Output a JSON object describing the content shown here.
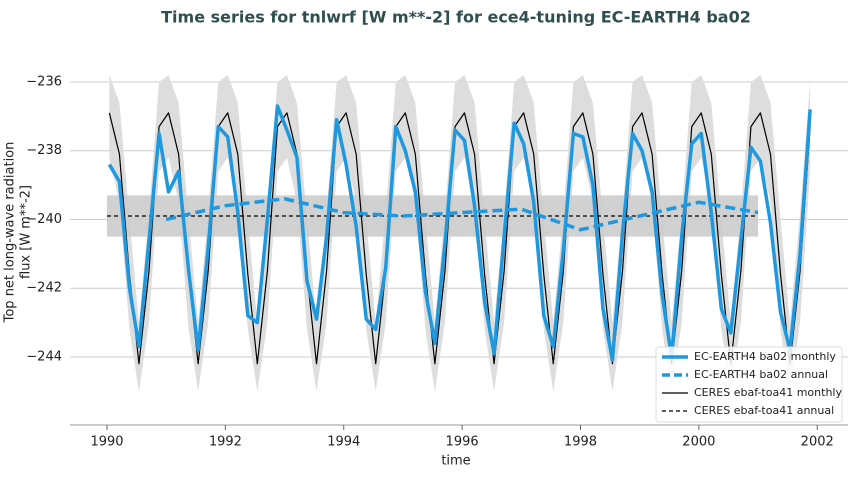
{
  "chart_data": {
    "type": "line",
    "title": "Time series for tnlwrf [W m**-2] for ece4-tuning EC-EARTH4 ba02",
    "xlabel": "time",
    "ylabel": [
      "Top net long-wave radiation",
      "flux [W m**-2]"
    ],
    "xlim": [
      1989.375,
      2002.52
    ],
    "ylim": [
      -245.98,
      -234.78
    ],
    "xticks": [
      1990,
      1992,
      1994,
      1996,
      1998,
      2000,
      2002
    ],
    "yticks": [
      {
        "value": -244,
        "label": "−244"
      },
      {
        "value": -242,
        "label": "−242"
      },
      {
        "value": -240,
        "label": "−240"
      },
      {
        "value": -238,
        "label": "−238"
      },
      {
        "value": -236,
        "label": "−236"
      }
    ],
    "grid": true,
    "legend": "lower right",
    "x": [
      1990.04,
      1990.21,
      1990.38,
      1990.54,
      1990.71,
      1990.88,
      1991.04,
      1991.21,
      1991.38,
      1991.54,
      1991.71,
      1991.88,
      1992.04,
      1992.21,
      1992.38,
      1992.54,
      1992.71,
      1992.88,
      1993.04,
      1993.21,
      1993.38,
      1993.54,
      1993.71,
      1993.88,
      1994.04,
      1994.21,
      1994.38,
      1994.54,
      1994.71,
      1994.88,
      1995.04,
      1995.21,
      1995.38,
      1995.54,
      1995.71,
      1995.88,
      1996.04,
      1996.21,
      1996.38,
      1996.54,
      1996.71,
      1996.88,
      1997.04,
      1997.21,
      1997.38,
      1997.54,
      1997.71,
      1997.88,
      1998.04,
      1998.21,
      1998.38,
      1998.54,
      1998.71,
      1998.88,
      1999.04,
      1999.21,
      1999.38,
      1999.54,
      1999.71,
      1999.88,
      2000.04,
      2000.21,
      2000.38,
      2000.54,
      2000.71,
      2000.88,
      2001.04,
      2001.21,
      2001.38,
      2001.54,
      2001.71,
      2001.88
    ],
    "band": {
      "color": "#dddddd",
      "upper": [
        -235.8,
        -236.6,
        -240.0,
        -243.0,
        -239.8,
        -236.0,
        -235.8,
        -236.6,
        -240.0,
        -243.0,
        -239.8,
        -236.0,
        -235.8,
        -236.6,
        -240.0,
        -243.0,
        -239.8,
        -236.0,
        -235.8,
        -236.6,
        -240.0,
        -243.0,
        -239.8,
        -236.0,
        -235.8,
        -236.6,
        -240.0,
        -243.0,
        -239.8,
        -236.0,
        -235.8,
        -236.6,
        -240.0,
        -243.0,
        -239.8,
        -236.0,
        -235.8,
        -236.6,
        -240.0,
        -243.0,
        -239.8,
        -236.0,
        -235.8,
        -236.6,
        -240.0,
        -243.0,
        -239.8,
        -236.0,
        -235.8,
        -236.6,
        -240.0,
        -243.0,
        -239.8,
        -236.0,
        -235.8,
        -236.6,
        -240.0,
        -243.0,
        -239.8,
        -236.0,
        -235.8,
        -236.6,
        -240.0,
        -243.0,
        -239.8,
        -236.0,
        -235.8,
        -236.6,
        -240.0,
        -243.0,
        -239.8,
        -236.0
      ],
      "lower": [
        -238.2,
        -239.5,
        -243.2,
        -245.0,
        -243.0,
        -238.6,
        -238.2,
        -239.5,
        -243.2,
        -245.0,
        -243.0,
        -238.6,
        -238.2,
        -239.5,
        -243.2,
        -245.0,
        -243.0,
        -238.6,
        -238.2,
        -239.5,
        -243.2,
        -245.0,
        -243.0,
        -238.6,
        -238.2,
        -239.5,
        -243.2,
        -245.0,
        -243.0,
        -238.6,
        -238.2,
        -239.5,
        -243.2,
        -245.0,
        -243.0,
        -238.6,
        -238.2,
        -239.5,
        -243.2,
        -245.0,
        -243.0,
        -238.6,
        -238.2,
        -239.5,
        -243.2,
        -245.0,
        -243.0,
        -238.6,
        -238.2,
        -239.5,
        -243.2,
        -245.0,
        -243.0,
        -238.6,
        -238.2,
        -239.5,
        -243.2,
        -245.0,
        -243.0,
        -238.6,
        -238.2,
        -239.5,
        -243.2,
        -245.0,
        -243.0,
        -238.6,
        -238.2,
        -239.5,
        -243.2,
        -245.0,
        -243.0,
        -238.6
      ]
    },
    "ceres_range": {
      "color": "#cccccc",
      "x": [
        1990,
        2001
      ],
      "lower": -240.5,
      "upper": -239.3
    },
    "series": [
      {
        "name": "EC-EARTH4 ba02 monthly",
        "color": "#1f98de",
        "width": 3.5,
        "dash": false,
        "values": [
          -238.4,
          -238.9,
          -242.0,
          -243.7,
          -240.6,
          -237.5,
          -239.2,
          -238.6,
          -241.5,
          -243.8,
          -240.8,
          -237.3,
          -237.6,
          -239.8,
          -242.8,
          -243.0,
          -240.0,
          -236.7,
          -237.4,
          -238.2,
          -241.8,
          -242.9,
          -240.5,
          -237.1,
          -238.4,
          -240.2,
          -242.9,
          -243.2,
          -241.4,
          -237.3,
          -238.0,
          -239.2,
          -242.1,
          -243.6,
          -240.7,
          -237.4,
          -237.7,
          -239.6,
          -242.4,
          -243.9,
          -240.5,
          -237.2,
          -237.8,
          -239.5,
          -242.8,
          -243.7,
          -240.9,
          -237.5,
          -237.6,
          -239.0,
          -242.6,
          -244.1,
          -240.4,
          -237.5,
          -238.0,
          -239.2,
          -242.2,
          -244.0,
          -240.5,
          -237.8,
          -237.5,
          -239.8,
          -242.6,
          -243.3,
          -240.6,
          -237.9,
          -238.3,
          -240.1,
          -242.7,
          -243.8,
          -241.0,
          -236.8
        ]
      },
      {
        "name": "EC-EARTH4 ba02 annual",
        "color": "#1f98de",
        "width": 3.5,
        "dash": true,
        "x": [
          1991,
          1992,
          1993,
          1994,
          1995,
          1996,
          1997,
          1998,
          1999,
          2000,
          2001
        ],
        "values": [
          -240.0,
          -239.6,
          -239.4,
          -239.8,
          -239.9,
          -239.8,
          -239.7,
          -240.3,
          -239.9,
          -239.5,
          -239.8
        ]
      },
      {
        "name": "CERES ebaf-toa41 monthly",
        "color": "#000000",
        "width": 1.2,
        "dash": false,
        "values": [
          -236.9,
          -238.1,
          -241.6,
          -244.2,
          -241.5,
          -237.3,
          -236.9,
          -238.1,
          -241.6,
          -244.2,
          -241.5,
          -237.3,
          -236.9,
          -238.1,
          -241.6,
          -244.2,
          -241.5,
          -237.3,
          -236.9,
          -238.1,
          -241.6,
          -244.2,
          -241.5,
          -237.3,
          -236.9,
          -238.1,
          -241.6,
          -244.2,
          -241.5,
          -237.3,
          -236.9,
          -238.1,
          -241.6,
          -244.2,
          -241.5,
          -237.3,
          -236.9,
          -238.1,
          -241.6,
          -244.2,
          -241.5,
          -237.3,
          -236.9,
          -238.1,
          -241.6,
          -244.2,
          -241.5,
          -237.3,
          -236.9,
          -238.1,
          -241.6,
          -244.2,
          -241.5,
          -237.3,
          -236.9,
          -238.1,
          -241.6,
          -244.2,
          -241.5,
          -237.3,
          -236.9,
          -238.1,
          -241.6,
          -244.2,
          -241.5,
          -237.3,
          -236.9,
          -238.1,
          -241.6,
          -244.2,
          -241.5,
          -237.3
        ]
      },
      {
        "name": "CERES ebaf-toa41 annual",
        "color": "#000000",
        "width": 1.2,
        "dash": true,
        "x": [
          1990,
          2001
        ],
        "values": [
          -239.9,
          -239.9
        ]
      }
    ]
  }
}
